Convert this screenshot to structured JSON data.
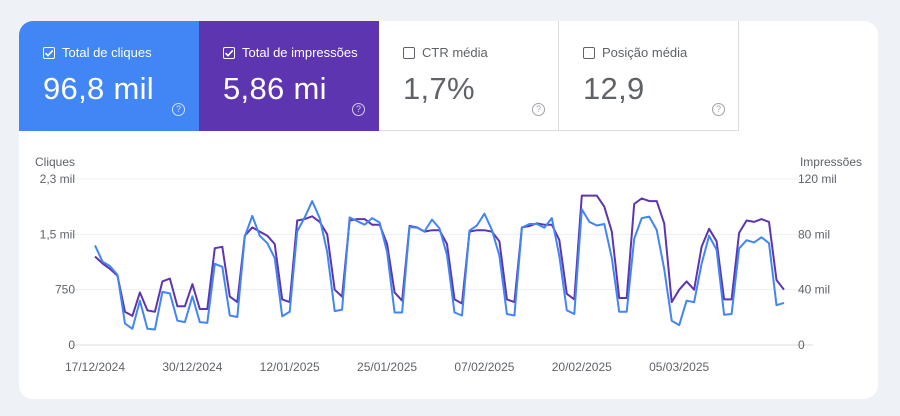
{
  "metrics": [
    {
      "label": "Total de cliques",
      "value": "96,8 mil",
      "checked": true,
      "color": "#4285f4"
    },
    {
      "label": "Total de impressões",
      "value": "5,86 mi",
      "checked": true,
      "color": "#5e35b1"
    },
    {
      "label": "CTR média",
      "value": "1,7%",
      "checked": false
    },
    {
      "label": "Posição média",
      "value": "12,9",
      "checked": false
    }
  ],
  "help_glyph": "?",
  "chart_data": {
    "type": "line",
    "left_axis": {
      "title": "Cliques",
      "ticks": [
        "0",
        "750",
        "1,5 mil",
        "2,3 mil"
      ],
      "range": [
        0,
        2250
      ]
    },
    "right_axis": {
      "title": "Impressões",
      "ticks": [
        "0",
        "40 mil",
        "80 mil",
        "120 mil"
      ],
      "range": [
        0,
        120000
      ]
    },
    "x_ticks": [
      "17/12/2024",
      "30/12/2024",
      "12/01/2025",
      "25/01/2025",
      "07/02/2025",
      "20/02/2025",
      "05/03/2025"
    ],
    "x_start": "2024-12-17",
    "grid": true,
    "series": [
      {
        "name": "Cliques",
        "axis": "left",
        "color": "#4285f4",
        "values": [
          1350,
          1130,
          1070,
          950,
          290,
          220,
          600,
          220,
          210,
          720,
          700,
          330,
          310,
          660,
          310,
          300,
          1100,
          1060,
          400,
          380,
          1470,
          1750,
          1480,
          1380,
          1180,
          390,
          450,
          1540,
          1730,
          1950,
          1720,
          1260,
          460,
          480,
          1730,
          1680,
          1630,
          1720,
          1660,
          1260,
          440,
          440,
          1600,
          1590,
          1540,
          1700,
          1580,
          1220,
          440,
          400,
          1550,
          1620,
          1780,
          1560,
          1210,
          420,
          400,
          1590,
          1640,
          1640,
          1590,
          1720,
          1210,
          470,
          420,
          1840,
          1670,
          1620,
          1640,
          1180,
          450,
          450,
          1440,
          1720,
          1740,
          1560,
          1030,
          330,
          270,
          600,
          580,
          1100,
          1480,
          1290,
          410,
          420,
          1310,
          1420,
          1390,
          1460,
          1380,
          540,
          570
        ]
      },
      {
        "name": "Impressões",
        "axis": "right",
        "color": "#5e35b1",
        "values": [
          64000,
          59000,
          55000,
          50000,
          24000,
          21000,
          38000,
          25000,
          24000,
          46000,
          48000,
          28000,
          28000,
          44000,
          26000,
          26000,
          70000,
          71000,
          35000,
          31000,
          79000,
          85000,
          82000,
          79000,
          73000,
          33000,
          31000,
          90000,
          91000,
          93000,
          89000,
          80000,
          40000,
          35000,
          90000,
          91000,
          91000,
          87000,
          87000,
          73000,
          38000,
          32000,
          86000,
          85000,
          82000,
          83000,
          83000,
          73000,
          33000,
          30000,
          82000,
          83000,
          83000,
          82000,
          75000,
          33000,
          31000,
          85000,
          86000,
          88000,
          87000,
          87000,
          76000,
          37000,
          33000,
          108000,
          108000,
          108000,
          100000,
          82000,
          34000,
          34000,
          102000,
          106000,
          104000,
          104000,
          88000,
          31000,
          40000,
          46000,
          40000,
          71000,
          84000,
          75000,
          33000,
          33000,
          81000,
          90000,
          89000,
          91000,
          89000,
          47000,
          40000
        ]
      }
    ]
  }
}
